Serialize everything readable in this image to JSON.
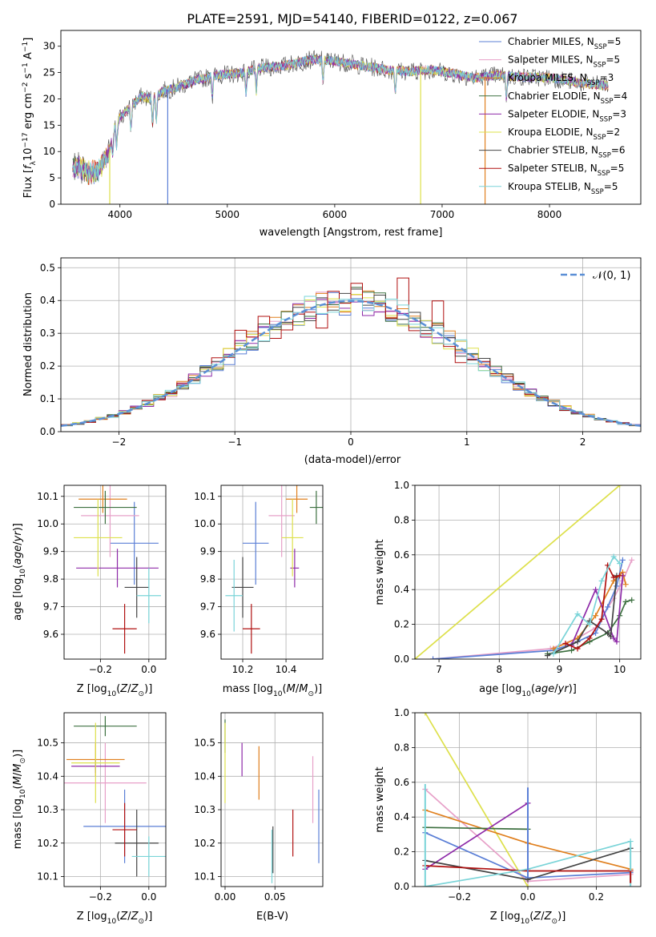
{
  "figure": {
    "title": "PLATE=2591, MJD=54140, FIBERID=0122, z=0.067"
  },
  "colors": {
    "Chabrier MILES": "#5b7fd6",
    "Salpeter MILES": "#e7a0c8",
    "Kroupa MILES": "#e0801f",
    "Chabrier ELODIE": "#3d7040",
    "Salpeter ELODIE": "#8e2aa8",
    "Kroupa ELODIE": "#dde04a",
    "Chabrier STELIB": "#444444",
    "Salpeter STELIB": "#b01010",
    "Kroupa STELIB": "#7ad4d8"
  },
  "chart_data": [
    {
      "id": "spectrum",
      "type": "line",
      "title": "PLATE=2591, MJD=54140, FIBERID=0122, z=0.067",
      "xlabel": "wavelength [Angstrom, rest frame]",
      "ylabel": "Flux [f_λ 10^-17 erg cm^-2 s^-1 A^-1]",
      "xlim": [
        3450,
        8850
      ],
      "ylim": [
        0,
        33
      ],
      "xticks": [
        4000,
        5000,
        6000,
        7000,
        8000
      ],
      "yticks": [
        0,
        5,
        10,
        15,
        20,
        25,
        30
      ],
      "grid": false,
      "legend_position": "top-right",
      "legend": [
        {
          "label": "Chabrier MILES, N",
          "sub": "SSP",
          "suffix": "=5",
          "color": "#5b7fd6"
        },
        {
          "label": "Salpeter MILES, N",
          "sub": "SSP",
          "suffix": "=5",
          "color": "#e7a0c8"
        },
        {
          "label": "Kroupa MILES, N",
          "sub": "SSP",
          "suffix": "=3",
          "color": "#e0801f"
        },
        {
          "label": "Chabrier ELODIE, N",
          "sub": "SSP",
          "suffix": "=4",
          "color": "#3d7040"
        },
        {
          "label": "Salpeter ELODIE, N",
          "sub": "SSP",
          "suffix": "=3",
          "color": "#8e2aa8"
        },
        {
          "label": "Kroupa ELODIE, N",
          "sub": "SSP",
          "suffix": "=2",
          "color": "#dde04a"
        },
        {
          "label": "Chabrier STELIB, N",
          "sub": "SSP",
          "suffix": "=6",
          "color": "#444444"
        },
        {
          "label": "Salpeter STELIB, N",
          "sub": "SSP",
          "suffix": "=5",
          "color": "#b01010"
        },
        {
          "label": "Kroupa STELIB, N",
          "sub": "SSP",
          "suffix": "=5",
          "color": "#7ad4d8"
        }
      ],
      "continuum": {
        "x": [
          3560,
          3600,
          3700,
          3800,
          3900,
          3950,
          4000,
          4100,
          4200,
          4300,
          4400,
          4500,
          4700,
          4900,
          5100,
          5300,
          5500,
          5800,
          6000,
          6200,
          6500,
          6700,
          6900,
          7100,
          7300,
          7500,
          7700,
          8000,
          8300,
          8550
        ],
        "y": [
          6.5,
          7.5,
          6.0,
          6.5,
          10.0,
          14.5,
          16.5,
          18.5,
          20.5,
          20.0,
          21.5,
          22.0,
          23.5,
          24.5,
          24.8,
          25.8,
          26.2,
          27.5,
          27.2,
          26.5,
          25.5,
          25.2,
          25.5,
          24.8,
          24.0,
          24.5,
          24.2,
          24.0,
          23.0,
          22.5
        ]
      },
      "absorption_features": [
        3934,
        3969,
        4102,
        4304,
        4340,
        4861,
        5175,
        5270,
        5890,
        6563,
        7600
      ],
      "dropouts": [
        {
          "x": 3905,
          "depth_to": 0,
          "color": "#dde04a"
        },
        {
          "x": 4445,
          "depth_to": 0,
          "color": "#5b7fd6"
        },
        {
          "x": 6800,
          "depth_to": 0,
          "color": "#dde04a"
        },
        {
          "x": 7400,
          "depth_to": 0,
          "color": "#e0801f"
        }
      ]
    },
    {
      "id": "residual_histogram",
      "type": "line",
      "xlabel": "(data-model)/error",
      "ylabel": "Normed distribution",
      "xlim": [
        -2.5,
        2.5
      ],
      "ylim": [
        0,
        0.53
      ],
      "xticks": [
        -2,
        -1,
        0,
        1,
        2
      ],
      "yticks": [
        0.0,
        0.1,
        0.2,
        0.3,
        0.4,
        0.5
      ],
      "grid": true,
      "legend_position": "top-right",
      "legend": [
        {
          "label": "𝒩(0, 1)",
          "color": "#5b8fd6",
          "style": "dashed"
        }
      ],
      "bin_width": 0.1,
      "gaussian": {
        "mean": 0,
        "sigma": 1,
        "color": "#5b8fd6"
      }
    },
    {
      "id": "age_vs_Z",
      "type": "scatter",
      "xlabel": "Z [log10(Z/Z⊙)]",
      "ylabel": "age  [log10(age/yr)]",
      "xlim": [
        -0.35,
        0.07
      ],
      "ylim": [
        9.51,
        10.14
      ],
      "xticks": [
        -0.2,
        0.0
      ],
      "yticks": [
        9.6,
        9.7,
        9.8,
        9.9,
        10.0,
        10.1
      ],
      "grid": true,
      "points": [
        {
          "model": "Chabrier MILES",
          "x": -0.06,
          "y": 9.93,
          "xerr": 0.1,
          "yerr": 0.15
        },
        {
          "model": "Salpeter MILES",
          "x": -0.16,
          "y": 10.03,
          "xerr": 0.12,
          "yerr": 0.15
        },
        {
          "model": "Kroupa MILES",
          "x": -0.19,
          "y": 10.09,
          "xerr": 0.1,
          "yerr": 0.05
        },
        {
          "model": "Chabrier ELODIE",
          "x": -0.18,
          "y": 10.06,
          "xerr": 0.13,
          "yerr": 0.06
        },
        {
          "model": "Salpeter ELODIE",
          "x": -0.13,
          "y": 9.84,
          "xerr": 0.17,
          "yerr": 0.07
        },
        {
          "model": "Kroupa ELODIE",
          "x": -0.21,
          "y": 9.95,
          "xerr": 0.1,
          "yerr": 0.14
        },
        {
          "model": "Chabrier STELIB",
          "x": -0.05,
          "y": 9.77,
          "xerr": 0.05,
          "yerr": 0.11
        },
        {
          "model": "Salpeter STELIB",
          "x": -0.1,
          "y": 9.62,
          "xerr": 0.05,
          "yerr": 0.09
        },
        {
          "model": "Kroupa STELIB",
          "x": 0.0,
          "y": 9.74,
          "xerr": 0.05,
          "yerr": 0.1
        }
      ]
    },
    {
      "id": "age_vs_mass",
      "type": "scatter",
      "xlabel": "mass [log10(M/M⊙)]",
      "ylabel": "",
      "xlim": [
        10.1,
        10.57
      ],
      "ylim": [
        9.51,
        10.14
      ],
      "xticks": [
        10.2,
        10.4
      ],
      "yticks": [
        9.6,
        9.7,
        9.8,
        9.9,
        10.0,
        10.1
      ],
      "grid": true,
      "points": [
        {
          "model": "Chabrier MILES",
          "x": 10.26,
          "y": 9.93,
          "xerr": 0.06,
          "yerr": 0.15
        },
        {
          "model": "Salpeter MILES",
          "x": 10.38,
          "y": 10.03,
          "xerr": 0.06,
          "yerr": 0.15
        },
        {
          "model": "Kroupa MILES",
          "x": 10.45,
          "y": 10.09,
          "xerr": 0.05,
          "yerr": 0.05
        },
        {
          "model": "Chabrier ELODIE",
          "x": 10.54,
          "y": 10.06,
          "xerr": 0.03,
          "yerr": 0.06
        },
        {
          "model": "Salpeter ELODIE",
          "x": 10.44,
          "y": 9.84,
          "xerr": 0.02,
          "yerr": 0.07
        },
        {
          "model": "Kroupa ELODIE",
          "x": 10.43,
          "y": 9.95,
          "xerr": 0.05,
          "yerr": 0.14
        },
        {
          "model": "Chabrier STELIB",
          "x": 10.2,
          "y": 9.77,
          "xerr": 0.05,
          "yerr": 0.11
        },
        {
          "model": "Salpeter STELIB",
          "x": 10.24,
          "y": 9.62,
          "xerr": 0.04,
          "yerr": 0.09
        },
        {
          "model": "Kroupa STELIB",
          "x": 10.16,
          "y": 9.74,
          "xerr": 0.04,
          "yerr": 0.13
        }
      ]
    },
    {
      "id": "mass_weight_vs_age",
      "type": "line",
      "xlabel": "age  [log10(age/yr)]",
      "ylabel": "mass weight",
      "xlim": [
        6.6,
        10.35
      ],
      "ylim": [
        0,
        1
      ],
      "xticks": [
        7,
        8,
        9,
        10
      ],
      "yticks": [
        0.0,
        0.2,
        0.4,
        0.6,
        0.8,
        1.0
      ],
      "grid": true,
      "series": [
        {
          "model": "Kroupa ELODIE",
          "x": [
            6.6,
            10.0
          ],
          "y": [
            0.0,
            1.0
          ]
        },
        {
          "model": "Salpeter MILES",
          "x": [
            6.9,
            8.85,
            9.3,
            9.6,
            9.9,
            10.05,
            10.2
          ],
          "y": [
            0.0,
            0.06,
            0.12,
            0.18,
            0.35,
            0.45,
            0.57
          ]
        },
        {
          "model": "Chabrier MILES",
          "x": [
            6.9,
            8.9,
            9.3,
            9.6,
            9.8,
            9.95,
            10.05
          ],
          "y": [
            0.0,
            0.05,
            0.1,
            0.15,
            0.3,
            0.42,
            0.57
          ]
        },
        {
          "model": "Kroupa MILES",
          "x": [
            8.9,
            9.3,
            9.6,
            9.9,
            10.05,
            10.1
          ],
          "y": [
            0.06,
            0.12,
            0.25,
            0.45,
            0.5,
            0.43
          ]
        },
        {
          "model": "Chabrier ELODIE",
          "x": [
            8.8,
            9.2,
            9.5,
            9.8,
            10.0,
            10.1,
            10.2
          ],
          "y": [
            0.03,
            0.05,
            0.1,
            0.15,
            0.25,
            0.33,
            0.34
          ]
        },
        {
          "model": "Salpeter ELODIE",
          "x": [
            9.2,
            9.6,
            9.9,
            9.95,
            10.05
          ],
          "y": [
            0.08,
            0.4,
            0.12,
            0.1,
            0.48
          ]
        },
        {
          "model": "Chabrier STELIB",
          "x": [
            8.8,
            9.3,
            9.5,
            9.8,
            9.85,
            9.95
          ],
          "y": [
            0.02,
            0.1,
            0.22,
            0.15,
            0.13,
            0.48
          ]
        },
        {
          "model": "Salpeter STELIB",
          "x": [
            9.1,
            9.3,
            9.5,
            9.7,
            9.8,
            9.9,
            10.0
          ],
          "y": [
            0.09,
            0.06,
            0.12,
            0.23,
            0.54,
            0.47,
            0.48
          ]
        },
        {
          "model": "Kroupa STELIB",
          "x": [
            8.9,
            9.3,
            9.5,
            9.7,
            9.9,
            10.0
          ],
          "y": [
            0.03,
            0.26,
            0.2,
            0.45,
            0.59,
            0.55
          ]
        }
      ]
    },
    {
      "id": "mass_vs_Z",
      "type": "scatter",
      "xlabel": "Z [log10(Z/Z⊙)]",
      "ylabel": "mass [log10(M/M⊙)]",
      "xlim": [
        -0.35,
        0.07
      ],
      "ylim": [
        10.07,
        10.59
      ],
      "xticks": [
        -0.2,
        0.0
      ],
      "yticks": [
        10.1,
        10.2,
        10.3,
        10.4,
        10.5
      ],
      "grid": true,
      "points": [
        {
          "model": "Chabrier MILES",
          "x": -0.1,
          "y": 10.25,
          "xerr": 0.17,
          "yerr": 0.11
        },
        {
          "model": "Salpeter MILES",
          "x": -0.18,
          "y": 10.38,
          "xerr": 0.17,
          "yerr": 0.12
        },
        {
          "model": "Kroupa MILES",
          "x": -0.22,
          "y": 10.45,
          "xerr": 0.12,
          "yerr": 0.05
        },
        {
          "model": "Chabrier ELODIE",
          "x": -0.18,
          "y": 10.55,
          "xerr": 0.13,
          "yerr": 0.03
        },
        {
          "model": "Salpeter ELODIE",
          "x": -0.22,
          "y": 10.43,
          "xerr": 0.1,
          "yerr": 0.02
        },
        {
          "model": "Kroupa ELODIE",
          "x": -0.22,
          "y": 10.44,
          "xerr": 0.1,
          "yerr": 0.12
        },
        {
          "model": "Chabrier STELIB",
          "x": -0.05,
          "y": 10.2,
          "xerr": 0.09,
          "yerr": 0.1
        },
        {
          "model": "Salpeter STELIB",
          "x": -0.1,
          "y": 10.24,
          "xerr": 0.05,
          "yerr": 0.08
        },
        {
          "model": "Kroupa STELIB",
          "x": 0.0,
          "y": 10.16,
          "xerr": 0.07,
          "yerr": 0.06
        }
      ]
    },
    {
      "id": "mass_vs_EBV",
      "type": "scatter",
      "xlabel": "E(B-V)",
      "ylabel": "",
      "xlim": [
        -0.004,
        0.098
      ],
      "ylim": [
        10.07,
        10.59
      ],
      "xticks": [
        0.0,
        0.05
      ],
      "yticks": [
        10.1,
        10.2,
        10.3,
        10.4,
        10.5
      ],
      "grid": true,
      "points": [
        {
          "model": "Chabrier MILES",
          "x": 0.094,
          "y": 10.25,
          "xerr": 0,
          "yerr": 0.11
        },
        {
          "model": "Salpeter MILES",
          "x": 0.088,
          "y": 10.36,
          "xerr": 0,
          "yerr": 0.1
        },
        {
          "model": "Kroupa MILES",
          "x": 0.034,
          "y": 10.41,
          "xerr": 0,
          "yerr": 0.08
        },
        {
          "model": "Chabrier ELODIE",
          "x": 0.0,
          "y": 10.52,
          "xerr": 0,
          "yerr": 0.05
        },
        {
          "model": "Salpeter ELODIE",
          "x": 0.017,
          "y": 10.45,
          "xerr": 0,
          "yerr": 0.05
        },
        {
          "model": "Kroupa ELODIE",
          "x": 0.0,
          "y": 10.44,
          "xerr": 0,
          "yerr": 0.12
        },
        {
          "model": "Chabrier STELIB",
          "x": 0.048,
          "y": 10.18,
          "xerr": 0,
          "yerr": 0.07
        },
        {
          "model": "Salpeter STELIB",
          "x": 0.068,
          "y": 10.23,
          "xerr": 0,
          "yerr": 0.07
        },
        {
          "model": "Kroupa STELIB",
          "x": 0.047,
          "y": 10.16,
          "xerr": 0,
          "yerr": 0.08
        }
      ]
    },
    {
      "id": "mass_weight_vs_Z",
      "type": "line",
      "xlabel": "Z [log10(Z/Z⊙)]",
      "ylabel": "mass weight",
      "xlim": [
        -0.33,
        0.33
      ],
      "ylim": [
        0,
        1
      ],
      "xticks": [
        -0.2,
        0.0,
        0.2
      ],
      "yticks": [
        0.0,
        0.2,
        0.4,
        0.6,
        0.8,
        1.0
      ],
      "grid": true,
      "series": [
        {
          "model": "Kroupa ELODIE",
          "x": [
            -0.3,
            0.0
          ],
          "y": [
            1.0,
            0.0
          ]
        },
        {
          "model": "Salpeter MILES",
          "x": [
            -0.3,
            0.0,
            0.3
          ],
          "y": [
            0.56,
            0.03,
            0.07
          ]
        },
        {
          "model": "Chabrier MILES",
          "x": [
            -0.3,
            0.0,
            0.3
          ],
          "y": [
            0.31,
            0.05,
            0.08
          ]
        },
        {
          "model": "Kroupa MILES",
          "x": [
            -0.3,
            0.0,
            0.3
          ],
          "y": [
            0.44,
            0.25,
            0.1
          ]
        },
        {
          "model": "Chabrier ELODIE",
          "x": [
            -0.3,
            0.0
          ],
          "y": [
            0.34,
            0.33
          ]
        },
        {
          "model": "Salpeter ELODIE",
          "x": [
            -0.3,
            0.0
          ],
          "y": [
            0.1,
            0.48
          ]
        },
        {
          "model": "Chabrier STELIB",
          "x": [
            -0.3,
            0.0,
            0.3
          ],
          "y": [
            0.15,
            0.04,
            0.22
          ]
        },
        {
          "model": "Salpeter STELIB",
          "x": [
            -0.3,
            0.0,
            0.3
          ],
          "y": [
            0.12,
            0.09,
            0.09
          ]
        },
        {
          "model": "Kroupa STELIB",
          "x": [
            -0.3,
            0.0,
            0.3
          ],
          "y": [
            0.0,
            0.1,
            0.26
          ]
        }
      ],
      "vertical_markers": [
        {
          "model": "Kroupa STELIB",
          "x": -0.3,
          "y0": 0.0,
          "y1": 0.59
        },
        {
          "model": "Chabrier MILES",
          "x": 0.0,
          "y0": 0.05,
          "y1": 0.57
        },
        {
          "model": "Kroupa STELIB",
          "x": 0.3,
          "y0": 0.0,
          "y1": 0.26
        },
        {
          "model": "Salpeter STELIB",
          "x": 0.3,
          "y0": 0.02,
          "y1": 0.09
        }
      ]
    }
  ]
}
